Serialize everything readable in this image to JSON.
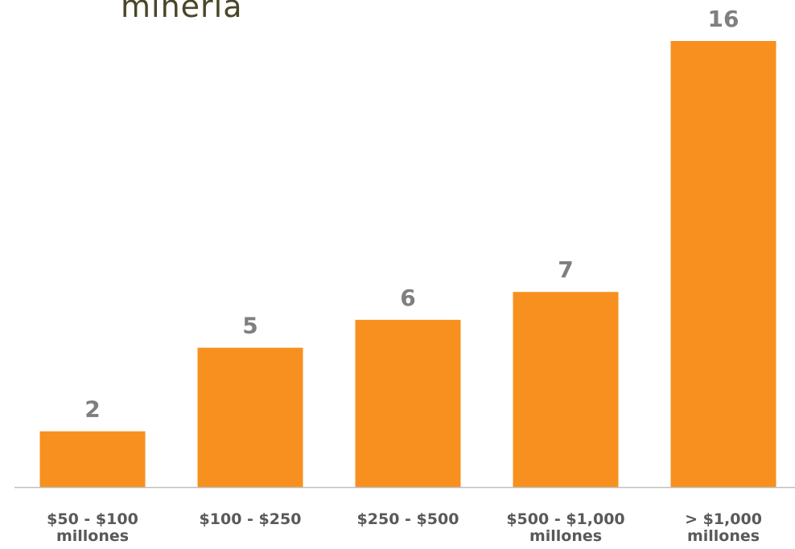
{
  "chart_data": {
    "type": "bar",
    "title": "minería",
    "categories": [
      [
        "$50 - $100",
        "millones"
      ],
      [
        "$100 - $250"
      ],
      [
        "$250 - $500"
      ],
      [
        "$500 - $1,000",
        "millones"
      ],
      [
        "> $1,000",
        "millones"
      ]
    ],
    "values": [
      2,
      5,
      6,
      7,
      16
    ],
    "data_labels": [
      "2",
      "5",
      "6",
      "7",
      "16"
    ],
    "ylim": [
      0,
      16
    ],
    "grid": false,
    "legend": "none",
    "colors": {
      "bar": "#f7901e",
      "axis": "#bfbfbf",
      "value_label": "#7f7f7f",
      "category_label": "#595959",
      "title": "#4a4628"
    }
  }
}
